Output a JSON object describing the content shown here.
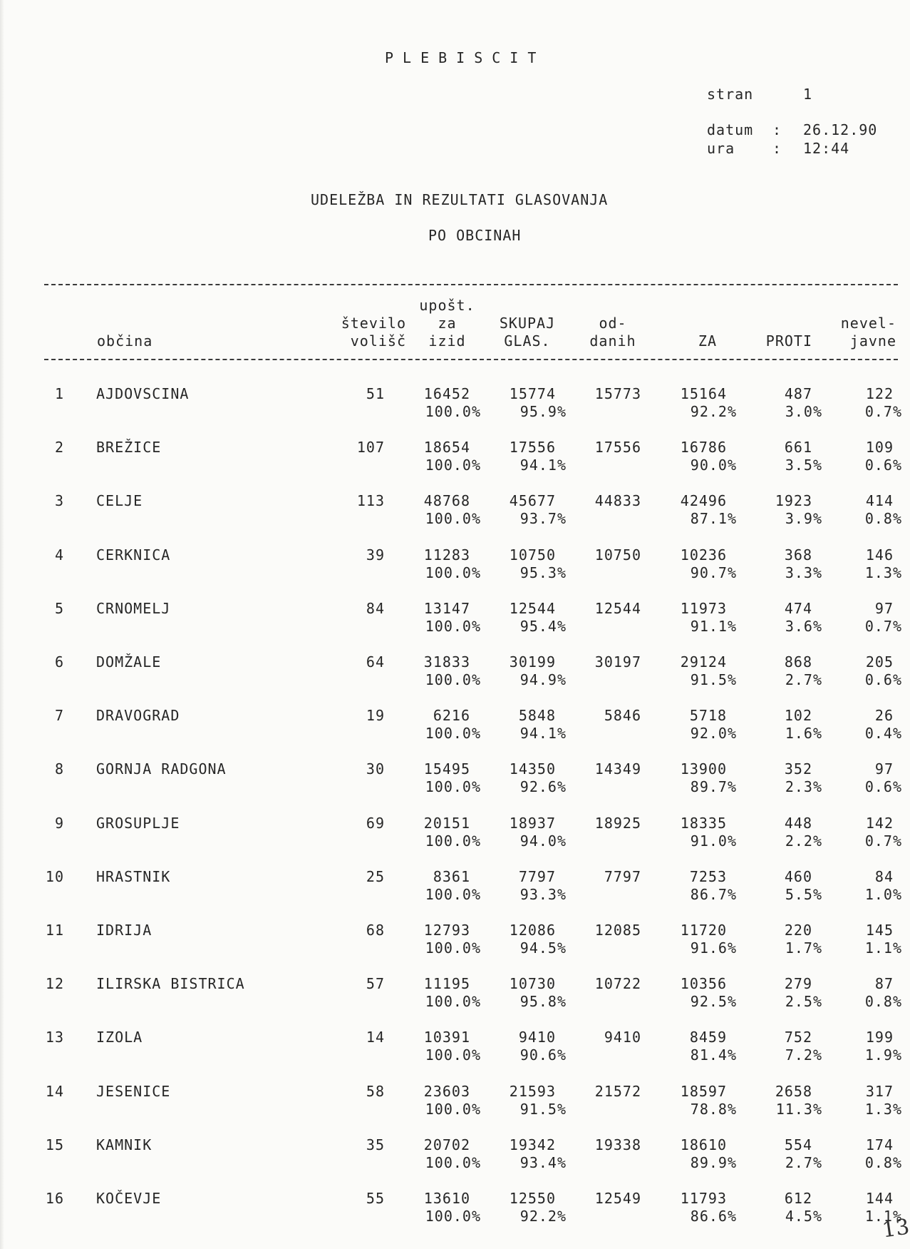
{
  "header": {
    "title": "PLEBISCIT",
    "page_label": "stran",
    "page_value": "1",
    "date_label": "datum",
    "date_sep": ":",
    "date_value": "26.12.90",
    "time_label": "ura",
    "time_sep": ":",
    "time_value": "12:44",
    "heading1": "UDELEŽBA IN REZULTATI GLASOVANJA",
    "heading2": "PO OBCINAH"
  },
  "columns": {
    "obcina": "občina",
    "volisc_1": "število",
    "volisc_2": "volišč",
    "upost_1": "upošt.",
    "upost_2": "za",
    "upost_3": "izid",
    "skupaj_1": "SKUPAJ",
    "skupaj_2": "GLAS.",
    "oddanih_1": "od-",
    "oddanih_2": "danih",
    "za": "ZA",
    "proti": "PROTI",
    "nev_1": "nevel-",
    "nev_2": "javne"
  },
  "rows": [
    {
      "n": "1",
      "name": "AJDOVSCINA",
      "volisc": "51",
      "upost": "16452",
      "upost_pct": "100.0%",
      "skupaj": "15774",
      "skupaj_pct": "95.9%",
      "oddanih": "15773",
      "za": "15164",
      "za_pct": "92.2%",
      "proti": "487",
      "proti_pct": "3.0%",
      "nev": "122",
      "nev_pct": "0.7%"
    },
    {
      "n": "2",
      "name": "BREŽICE",
      "volisc": "107",
      "upost": "18654",
      "upost_pct": "100.0%",
      "skupaj": "17556",
      "skupaj_pct": "94.1%",
      "oddanih": "17556",
      "za": "16786",
      "za_pct": "90.0%",
      "proti": "661",
      "proti_pct": "3.5%",
      "nev": "109",
      "nev_pct": "0.6%"
    },
    {
      "n": "3",
      "name": "CELJE",
      "volisc": "113",
      "upost": "48768",
      "upost_pct": "100.0%",
      "skupaj": "45677",
      "skupaj_pct": "93.7%",
      "oddanih": "44833",
      "za": "42496",
      "za_pct": "87.1%",
      "proti": "1923",
      "proti_pct": "3.9%",
      "nev": "414",
      "nev_pct": "0.8%"
    },
    {
      "n": "4",
      "name": "CERKNICA",
      "volisc": "39",
      "upost": "11283",
      "upost_pct": "100.0%",
      "skupaj": "10750",
      "skupaj_pct": "95.3%",
      "oddanih": "10750",
      "za": "10236",
      "za_pct": "90.7%",
      "proti": "368",
      "proti_pct": "3.3%",
      "nev": "146",
      "nev_pct": "1.3%"
    },
    {
      "n": "5",
      "name": "CRNOMELJ",
      "volisc": "84",
      "upost": "13147",
      "upost_pct": "100.0%",
      "skupaj": "12544",
      "skupaj_pct": "95.4%",
      "oddanih": "12544",
      "za": "11973",
      "za_pct": "91.1%",
      "proti": "474",
      "proti_pct": "3.6%",
      "nev": "97",
      "nev_pct": "0.7%"
    },
    {
      "n": "6",
      "name": "DOMŽALE",
      "volisc": "64",
      "upost": "31833",
      "upost_pct": "100.0%",
      "skupaj": "30199",
      "skupaj_pct": "94.9%",
      "oddanih": "30197",
      "za": "29124",
      "za_pct": "91.5%",
      "proti": "868",
      "proti_pct": "2.7%",
      "nev": "205",
      "nev_pct": "0.6%"
    },
    {
      "n": "7",
      "name": "DRAVOGRAD",
      "volisc": "19",
      "upost": "6216",
      "upost_pct": "100.0%",
      "skupaj": "5848",
      "skupaj_pct": "94.1%",
      "oddanih": "5846",
      "za": "5718",
      "za_pct": "92.0%",
      "proti": "102",
      "proti_pct": "1.6%",
      "nev": "26",
      "nev_pct": "0.4%"
    },
    {
      "n": "8",
      "name": "GORNJA RADGONA",
      "volisc": "30",
      "upost": "15495",
      "upost_pct": "100.0%",
      "skupaj": "14350",
      "skupaj_pct": "92.6%",
      "oddanih": "14349",
      "za": "13900",
      "za_pct": "89.7%",
      "proti": "352",
      "proti_pct": "2.3%",
      "nev": "97",
      "nev_pct": "0.6%"
    },
    {
      "n": "9",
      "name": "GROSUPLJE",
      "volisc": "69",
      "upost": "20151",
      "upost_pct": "100.0%",
      "skupaj": "18937",
      "skupaj_pct": "94.0%",
      "oddanih": "18925",
      "za": "18335",
      "za_pct": "91.0%",
      "proti": "448",
      "proti_pct": "2.2%",
      "nev": "142",
      "nev_pct": "0.7%"
    },
    {
      "n": "10",
      "name": "HRASTNIK",
      "volisc": "25",
      "upost": "8361",
      "upost_pct": "100.0%",
      "skupaj": "7797",
      "skupaj_pct": "93.3%",
      "oddanih": "7797",
      "za": "7253",
      "za_pct": "86.7%",
      "proti": "460",
      "proti_pct": "5.5%",
      "nev": "84",
      "nev_pct": "1.0%"
    },
    {
      "n": "11",
      "name": "IDRIJA",
      "volisc": "68",
      "upost": "12793",
      "upost_pct": "100.0%",
      "skupaj": "12086",
      "skupaj_pct": "94.5%",
      "oddanih": "12085",
      "za": "11720",
      "za_pct": "91.6%",
      "proti": "220",
      "proti_pct": "1.7%",
      "nev": "145",
      "nev_pct": "1.1%"
    },
    {
      "n": "12",
      "name": "ILIRSKA BISTRICA",
      "volisc": "57",
      "upost": "11195",
      "upost_pct": "100.0%",
      "skupaj": "10730",
      "skupaj_pct": "95.8%",
      "oddanih": "10722",
      "za": "10356",
      "za_pct": "92.5%",
      "proti": "279",
      "proti_pct": "2.5%",
      "nev": "87",
      "nev_pct": "0.8%"
    },
    {
      "n": "13",
      "name": "IZOLA",
      "volisc": "14",
      "upost": "10391",
      "upost_pct": "100.0%",
      "skupaj": "9410",
      "skupaj_pct": "90.6%",
      "oddanih": "9410",
      "za": "8459",
      "za_pct": "81.4%",
      "proti": "752",
      "proti_pct": "7.2%",
      "nev": "199",
      "nev_pct": "1.9%"
    },
    {
      "n": "14",
      "name": "JESENICE",
      "volisc": "58",
      "upost": "23603",
      "upost_pct": "100.0%",
      "skupaj": "21593",
      "skupaj_pct": "91.5%",
      "oddanih": "21572",
      "za": "18597",
      "za_pct": "78.8%",
      "proti": "2658",
      "proti_pct": "11.3%",
      "nev": "317",
      "nev_pct": "1.3%"
    },
    {
      "n": "15",
      "name": "KAMNIK",
      "volisc": "35",
      "upost": "20702",
      "upost_pct": "100.0%",
      "skupaj": "19342",
      "skupaj_pct": "93.4%",
      "oddanih": "19338",
      "za": "18610",
      "za_pct": "89.9%",
      "proti": "554",
      "proti_pct": "2.7%",
      "nev": "174",
      "nev_pct": "0.8%"
    },
    {
      "n": "16",
      "name": "KOČEVJE",
      "volisc": "55",
      "upost": "13610",
      "upost_pct": "100.0%",
      "skupaj": "12550",
      "skupaj_pct": "92.2%",
      "oddanih": "12549",
      "za": "11793",
      "za_pct": "86.6%",
      "proti": "612",
      "proti_pct": "4.5%",
      "nev": "144",
      "nev_pct": "1.1%"
    }
  ],
  "page_mark": "13"
}
